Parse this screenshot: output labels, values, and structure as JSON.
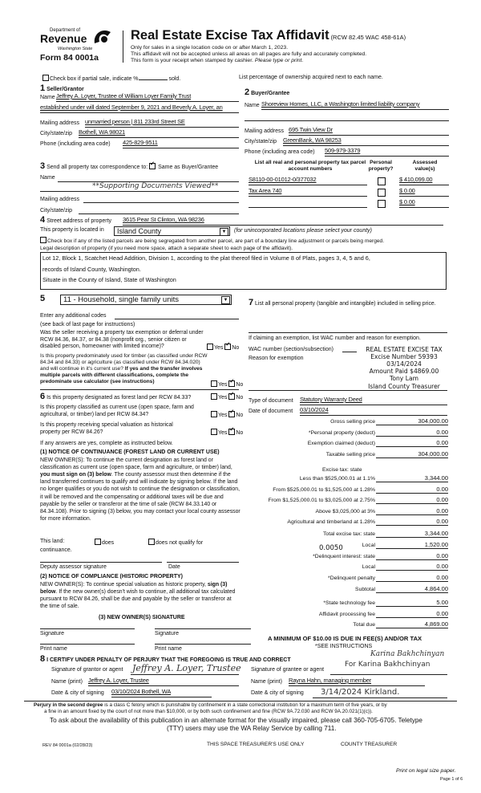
{
  "header": {
    "agency_line1": "Department of",
    "agency_line2": "Revenue",
    "agency_line3": "Washington State",
    "form_number": "Form 84 0001a",
    "title": "Real Estate Excise Tax Affidavit",
    "title_ref": "(RCW 82.45 WAC 458-61A)",
    "sub1": "Only for sales in a single location code on or after March 1, 2023.",
    "sub2": "This affidavit will not be accepted unless all areas on all pages are fully and accurately completed.",
    "sub3": "This form is your receipt when stamped by cashier.",
    "sub3_italic": "Please type or print."
  },
  "partial_sale": {
    "label": "Check box if partial sale, indicate %",
    "suffix": "sold.",
    "checked": false
  },
  "ownership_note": "List percentage of ownership acquired next to each name.",
  "seller": {
    "num": "1",
    "heading": "Seller/Grantor",
    "name_label": "Name",
    "name": "Jeffrey A. Loyer, Trustee of William Loyer Family Trust",
    "name2": "established under will dated September 9, 2021 and Beverly A. Loyer, an",
    "mail_label": "Mailing address",
    "mail": "unmarried person | 811 233rd Street SE",
    "city_label": "City/state/zip",
    "city": "Bothell, WA 98021",
    "phone_label": "Phone (including area code)",
    "phone": "425-829-9511"
  },
  "buyer": {
    "num": "2",
    "heading": "Buyer/Grantee",
    "name_label": "Name",
    "name": "Shoreview Homes, LLC, a Washington limited liability company",
    "mail_label": "Mailing address",
    "mail": "695 Twin View Dr",
    "city_label": "City/state/zip",
    "city": "GreenBank, WA 98253",
    "phone_label": "Phone (including area code)",
    "phone": "509-979-3379"
  },
  "correspondence": {
    "num": "3",
    "label": "Send all property tax correspondence to:",
    "same_label": "Same as Buyer/Grantee",
    "same_checked": true,
    "name_label": "Name",
    "stamp": "**Supporting Documents Viewed**",
    "mail_label": "Mailing address",
    "city_label": "City/state/zip"
  },
  "parcels": {
    "col1": "List all real and personal property tax parcel account numbers",
    "col2": "Personal property?",
    "col3": "Assessed value(s)",
    "rows": [
      {
        "parcel": "S8110-00-01012-0/377032",
        "personal": false,
        "value": "$ 410,099.00"
      },
      {
        "parcel": "Tax Area 740",
        "personal": false,
        "value": "$ 0.00"
      },
      {
        "parcel": "",
        "personal": false,
        "value": "$ 0.00"
      }
    ]
  },
  "property": {
    "num": "4",
    "street_label": "Street address of property",
    "street": "3615 Pear St Clinton, WA 98236",
    "located_label": "This property is located in",
    "county": "Island County",
    "county_note": "(for unincorporated locations please select your county)",
    "segregate_label": "Check box if any of the listed parcels are being segregated from another parcel, are part of a boundary line adjustment or parcels being merged.",
    "legal_label": "Legal description of property (if you need more space, attach a separate sheet to each page of the affidavit).",
    "legal_lines": [
      "Lot 12, Block 1, Scatchet Head Addition, Division 1, according to the plat thereof filed in Volume 8 of Plats, pages 3, 4, 5 and 6,",
      "records of Island County, Washington.",
      "Situate in the County of Island, State of Washington"
    ]
  },
  "section5": {
    "num": "5",
    "use_code": "11 - Household, single family units",
    "codes_label": "Enter any additional codes",
    "codes_note": "(see back of last page for instructions)",
    "q1": "Was the seller receiving a property tax exemption or deferral under RCW 84.36, 84.37, or 84.38 (nonprofit org., senior citizen or disabled person, homeowner with limited income)?",
    "q2": "Is this property predominately used for timber (as classified under RCW 84.34 and 84.33) or agriculture (as classified under RCW 84.34.020) and will continue in it's current use?",
    "q2_bold": "If yes and the transfer involves multiple parcels with different classifications, complete the predominate use calculator (see instructions)",
    "yes": "Yes",
    "no": "No"
  },
  "section6": {
    "num": "6",
    "q1": "Is this property designated as forest land per RCW 84.33?",
    "q2": "Is this property classified as current use (open space, farm and agricultural, or timber) land per RCW 84.34?",
    "q3": "Is this property receiving special valuation as historical property per RCW 84.26?",
    "if_yes": "If any answers are yes, complete as instructed below.",
    "n1_title": "(1) NOTICE OF CONTINUANCE (FOREST LAND OR CURRENT USE)",
    "n1_a": "NEW OWNER(S): To continue the current designation as forest land or classification as current use (open space, farm and agriculture, or timber) land,",
    "n1_bold": "you must sign on (3) below",
    "n1_b": ". The county assessor must then determine if the land transferred continues to qualify and will indicate by signing below. If the land no longer qualifies or you do not wish to continue the designation or classification, it will be removed and the compensating or additional taxes will be due and payable by the seller or transferor at the time of sale (RCW 84.33.140 or 84.34.108). Prior to signing (3) below, you may contact your local county assessor for more information.",
    "this_land": "This land:",
    "continuance": "continuance.",
    "does": "does",
    "does_not": "does not qualify for",
    "deputy": "Deputy assessor signature",
    "date": "Date",
    "n2_title": "(2) NOTICE OF COMPLIANCE (HISTORIC PROPERTY)",
    "n2_a": "NEW OWNER(S): To continue special valuation as historic property,",
    "n2_bold": "sign (3) below",
    "n2_b": ". If the new owner(s) doesn't wish to continue, all additional tax calculated pursuant to RCW 84.26, shall be due and payable by the seller or transferor at the time of sale.",
    "n3_title": "(3) NEW OWNER(S) SIGNATURE",
    "signature": "Signature",
    "print_name": "Print name"
  },
  "section7": {
    "num": "7",
    "label": "List all personal property (tangible and intangible) included in selling price.",
    "exempt_label": "If claiming an exemption, list WAC number and reason for exemption.",
    "wac_label": "WAC number (section/subsection)",
    "reason_label": "Reason for exemption",
    "stamp_lines": [
      "REAL ESTATE EXCISE TAX",
      "Excise Number 59393",
      "03/14/2024",
      "Amount Paid $4869.00",
      "Tony Lam",
      "Island County Treasurer"
    ],
    "doc_type_label": "Type of document",
    "doc_type": "Statutory Warranty Deed",
    "doc_date_label": "Date of document",
    "doc_date": "03/10/2024"
  },
  "totals": {
    "rows": [
      {
        "label": "Gross selling price",
        "value": "304,000.00"
      },
      {
        "label": "*Personal property (deduct)",
        "value": "0.00"
      },
      {
        "label": "Exemption claimed (deduct)",
        "value": "0.00"
      },
      {
        "label": "Taxable selling price",
        "value": "304,000.00"
      },
      {
        "label": "Less than $525,000.01 at 1.1%",
        "value": "3,344.00"
      },
      {
        "label": "From $525,000.01 to $1,525,000 at 1.28%",
        "value": "0.00"
      },
      {
        "label": "From $1,525,000.01 to $3,025,000 at 2.75%",
        "value": "0.00"
      },
      {
        "label": "Above $3,025,000 at 3%",
        "value": "0.00"
      },
      {
        "label": "Agricultural and timberland at 1.28%",
        "value": "0.00"
      },
      {
        "label": "Total excise tax: state",
        "value": "3,344.00"
      },
      {
        "label": "Local",
        "value": "1,520.00"
      },
      {
        "label": "*Delinquent interest: state",
        "value": "0.00"
      },
      {
        "label": "Local",
        "value": "0.00"
      },
      {
        "label": "*Delinquent penalty",
        "value": "0.00"
      },
      {
        "label": "Subtotal",
        "value": "4,864.00"
      },
      {
        "label": "*State technology fee",
        "value": "5.00"
      },
      {
        "label": "Affidavit processing fee",
        "value": "0.00"
      },
      {
        "label": "Total due",
        "value": "4,869.00"
      }
    ],
    "excise_heading": "Excise tax: state",
    "local_rate": "0.0050",
    "minimum": "A MINIMUM OF $10.00 IS DUE IN FEE(S) AND/OR TAX",
    "see_instructions": "*SEE INSTRUCTIONS"
  },
  "section8": {
    "num": "8",
    "certify": "I CERTIFY UNDER PENALTY OF PERJURY THAT THE FOREGOING IS TRUE AND CORRECT",
    "grantor_sig_label": "Signature of grantor or agent",
    "grantor_sig": "Jeffrey A. Loyer, Trustee",
    "grantor_name_label": "Name (print)",
    "grantor_name": "Jeffrey A. Loyer, Trustee",
    "grantor_date_label": "Date & city of signing",
    "grantor_date": "03/10/2024 Bothell, WA",
    "grantee_sig_label": "Signature of grantee or agent",
    "grantee_sig": "Karina Bakhchinyan",
    "grantee_sig2": "For Karina Bakhchinyan",
    "grantee_name_label": "Name (print)",
    "grantee_name": "Rayna Hahn, managing member",
    "grantee_date_label": "Date & city of signing",
    "grantee_date": "3/14/2024 Kirkland."
  },
  "footer": {
    "perjury_bold": "Perjury in the second degree",
    "perjury": "is a class C felony which is punishable by confinement in a state correctional institution for a maximum term of five years, or by",
    "perjury2": "a fine in an amount fixed by the court of not more than $10,000, or by both such confinement and fine (RCW 9A.72.030 and RCW 9A.20.021(1)(c)).",
    "access1": "To ask about the availability of this publication in an alternate format for the visually impaired, please call 360-705-6705. Teletype",
    "access2": "(TTY) users may use the WA Relay Service by calling 711.",
    "rev": "REV 84 0001a   (02/28/23)",
    "treasurer_use": "THIS SPACE TREASURER'S USE ONLY",
    "county_treasurer": "COUNTY TREASURER",
    "print_legal": "Print on legal size paper.",
    "page": "Page 1 of 6"
  }
}
